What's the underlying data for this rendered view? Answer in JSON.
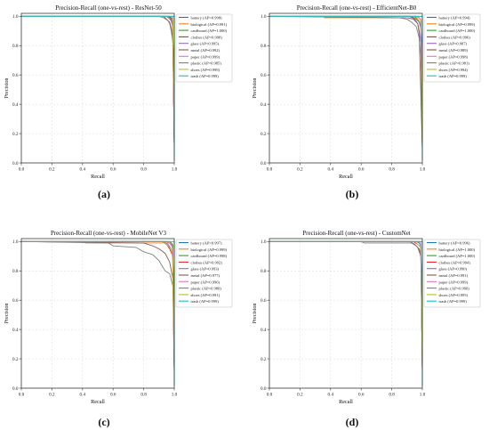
{
  "axis": {
    "xlabel": "Recall",
    "ylabel": "Precision",
    "xticks": [
      "0.0",
      "0.2",
      "0.4",
      "0.6",
      "0.8",
      "1.0"
    ],
    "yticks": [
      "0.0",
      "0.2",
      "0.4",
      "0.6",
      "0.8",
      "1.0"
    ],
    "xlim": [
      0,
      1
    ],
    "ylim": [
      0,
      1.02
    ]
  },
  "colors": [
    "#1f77b4",
    "#ff7f0e",
    "#2ca02c",
    "#d62728",
    "#9467bd",
    "#8c564b",
    "#e377c2",
    "#7f7f7f",
    "#bcbd22",
    "#17becf"
  ],
  "panels": [
    {
      "caption": "(a)"
    },
    {
      "caption": "(b)"
    },
    {
      "caption": "(c)"
    },
    {
      "caption": "(d)"
    }
  ],
  "chart_data": [
    {
      "type": "line",
      "title": "Precision-Recall (one-vs-rest) - ResNet-50",
      "xlabel": "Recall",
      "ylabel": "Precision",
      "xlim": [
        0,
        1
      ],
      "ylim": [
        0,
        1.02
      ],
      "grid": true,
      "legend_position": "right",
      "series": [
        {
          "name": "battery (AP=0.998)",
          "x": [
            0,
            0.9,
            0.97,
            0.98,
            0.99,
            1.0
          ],
          "y": [
            1.0,
            1.0,
            1.0,
            0.98,
            0.95,
            0.12
          ]
        },
        {
          "name": "biological (AP=0.991)",
          "x": [
            0,
            0.95,
            0.96,
            0.98,
            0.99,
            1.0
          ],
          "y": [
            1.0,
            1.0,
            0.99,
            0.97,
            0.93,
            0.1
          ]
        },
        {
          "name": "cardboard (AP=1.000)",
          "x": [
            0,
            0.99,
            1.0,
            1.0
          ],
          "y": [
            1.0,
            1.0,
            1.0,
            0.11
          ]
        },
        {
          "name": "clothes (AP=0.998)",
          "x": [
            0,
            0.96,
            0.98,
            0.99,
            1.0
          ],
          "y": [
            1.0,
            1.0,
            0.99,
            0.98,
            0.11
          ]
        },
        {
          "name": "glass (AP=0.995)",
          "x": [
            0,
            0.94,
            0.97,
            0.98,
            0.99,
            1.0
          ],
          "y": [
            1.0,
            1.0,
            0.99,
            0.97,
            0.93,
            0.1
          ]
        },
        {
          "name": "metal (AP=0.992)",
          "x": [
            0,
            0.93,
            0.95,
            0.97,
            0.98,
            0.99,
            1.0
          ],
          "y": [
            1.0,
            1.0,
            0.98,
            0.96,
            0.92,
            0.86,
            0.1
          ]
        },
        {
          "name": "paper (AP=0.999)",
          "x": [
            0,
            0.98,
            0.99,
            1.0
          ],
          "y": [
            1.0,
            1.0,
            0.99,
            0.1
          ]
        },
        {
          "name": "plastic (AP=0.985)",
          "x": [
            0,
            0.9,
            0.93,
            0.96,
            0.97,
            0.98,
            0.99,
            1.0
          ],
          "y": [
            1.0,
            1.0,
            0.99,
            0.97,
            0.95,
            0.9,
            0.83,
            0.68
          ]
        },
        {
          "name": "shoes (AP=0.999)",
          "x": [
            0,
            0.98,
            0.99,
            1.0
          ],
          "y": [
            1.0,
            1.0,
            0.99,
            0.11
          ]
        },
        {
          "name": "trash (AP=0.999)",
          "x": [
            0,
            0.99,
            1.0,
            1.0
          ],
          "y": [
            1.0,
            1.0,
            1.0,
            0.02
          ]
        }
      ]
    },
    {
      "type": "line",
      "title": "Precision-Recall (one-vs-rest) - EfficientNet-B0",
      "xlabel": "Recall",
      "ylabel": "Precision",
      "xlim": [
        0,
        1
      ],
      "ylim": [
        0,
        1.02
      ],
      "grid": true,
      "legend_position": "right",
      "series": [
        {
          "name": "battery (AP=0.994)",
          "x": [
            0,
            0.93,
            0.96,
            0.98,
            0.99,
            1.0
          ],
          "y": [
            1.0,
            1.0,
            0.98,
            0.96,
            0.92,
            0.75
          ]
        },
        {
          "name": "biological (AP=0.999)",
          "x": [
            0,
            0.35,
            0.36,
            0.98,
            0.99,
            1.0
          ],
          "y": [
            1.0,
            1.0,
            0.99,
            0.99,
            0.97,
            0.1
          ]
        },
        {
          "name": "cardboard (AP=1.000)",
          "x": [
            0,
            0.99,
            1.0,
            1.0
          ],
          "y": [
            1.0,
            1.0,
            1.0,
            0.11
          ]
        },
        {
          "name": "clothes (AP=0.996)",
          "x": [
            0,
            0.95,
            0.97,
            0.99,
            1.0
          ],
          "y": [
            1.0,
            1.0,
            0.98,
            0.95,
            0.11
          ]
        },
        {
          "name": "glass (AP=0.987)",
          "x": [
            0,
            0.9,
            0.94,
            0.97,
            0.98,
            0.99,
            1.0
          ],
          "y": [
            1.0,
            0.99,
            0.98,
            0.95,
            0.9,
            0.82,
            0.1
          ]
        },
        {
          "name": "metal (AP=0.989)",
          "x": [
            0,
            0.92,
            0.95,
            0.97,
            0.98,
            1.0
          ],
          "y": [
            1.0,
            1.0,
            0.98,
            0.95,
            0.88,
            0.08
          ]
        },
        {
          "name": "paper (AP=0.998)",
          "x": [
            0,
            0.97,
            0.99,
            1.0
          ],
          "y": [
            1.0,
            1.0,
            0.98,
            0.5
          ]
        },
        {
          "name": "plastic (AP=0.981)",
          "x": [
            0,
            0.85,
            0.9,
            0.93,
            0.96,
            0.98,
            1.0
          ],
          "y": [
            1.0,
            0.99,
            0.98,
            0.96,
            0.93,
            0.85,
            0.62
          ]
        },
        {
          "name": "shoes (AP=0.994)",
          "x": [
            0,
            0.94,
            0.97,
            0.99,
            1.0
          ],
          "y": [
            1.0,
            1.0,
            0.98,
            0.95,
            0.1
          ]
        },
        {
          "name": "trash (AP=0.999)",
          "x": [
            0,
            0.98,
            1.0,
            1.0
          ],
          "y": [
            1.0,
            1.0,
            1.0,
            0.02
          ]
        }
      ]
    },
    {
      "type": "line",
      "title": "Precision-Recall (one-vs-rest) - MobileNet V3",
      "xlabel": "Recall",
      "ylabel": "Precision",
      "xlim": [
        0,
        1
      ],
      "ylim": [
        0,
        1.02
      ],
      "grid": true,
      "legend_position": "right",
      "series": [
        {
          "name": "battery (AP=0.997)",
          "x": [
            0,
            0.95,
            0.97,
            0.99,
            1.0
          ],
          "y": [
            1.0,
            1.0,
            0.99,
            0.96,
            0.4
          ]
        },
        {
          "name": "biological (AP=0.999)",
          "x": [
            0,
            0.4,
            0.42,
            0.98,
            0.99,
            1.0
          ],
          "y": [
            1.0,
            1.0,
            0.99,
            0.99,
            0.97,
            0.1
          ]
        },
        {
          "name": "cardboard (AP=0.998)",
          "x": [
            0,
            0.97,
            0.99,
            1.0
          ],
          "y": [
            1.0,
            1.0,
            0.98,
            0.11
          ]
        },
        {
          "name": "clothes (AP=0.992)",
          "x": [
            0,
            0.92,
            0.95,
            0.97,
            0.99,
            1.0
          ],
          "y": [
            1.0,
            1.0,
            0.98,
            0.95,
            0.9,
            0.39
          ]
        },
        {
          "name": "glass (AP=0.993)",
          "x": [
            0,
            0.93,
            0.96,
            0.98,
            0.99,
            1.0
          ],
          "y": [
            1.0,
            1.0,
            0.98,
            0.95,
            0.9,
            0.1
          ]
        },
        {
          "name": "metal (AP=0.977)",
          "x": [
            0,
            0.8,
            0.86,
            0.9,
            0.94,
            0.97,
            0.99,
            1.0
          ],
          "y": [
            1.0,
            0.99,
            0.97,
            0.95,
            0.92,
            0.86,
            0.75,
            0.1
          ]
        },
        {
          "name": "paper (AP=0.996)",
          "x": [
            0,
            0.95,
            0.98,
            0.99,
            1.0
          ],
          "y": [
            1.0,
            1.0,
            0.98,
            0.95,
            0.1
          ]
        },
        {
          "name": "plastic (AP=0.980)",
          "x": [
            0,
            0.57,
            0.6,
            0.75,
            0.8,
            0.86,
            0.9,
            0.94,
            0.97,
            0.99,
            1.0
          ],
          "y": [
            1.0,
            0.99,
            0.97,
            0.96,
            0.93,
            0.91,
            0.87,
            0.8,
            0.78,
            0.7,
            0.6
          ]
        },
        {
          "name": "shoes (AP=0.991)",
          "x": [
            0,
            0.92,
            0.95,
            0.98,
            0.99,
            1.0
          ],
          "y": [
            1.0,
            1.0,
            0.98,
            0.95,
            0.88,
            0.1
          ]
        },
        {
          "name": "trash (AP=0.999)",
          "x": [
            0,
            0.99,
            1.0,
            1.0
          ],
          "y": [
            1.0,
            1.0,
            1.0,
            0.02
          ]
        }
      ]
    },
    {
      "type": "line",
      "title": "Precision-Recall (one-vs-rest) - CustomNet",
      "xlabel": "Recall",
      "ylabel": "Precision",
      "xlim": [
        0,
        1
      ],
      "ylim": [
        0,
        1.02
      ],
      "grid": true,
      "legend_position": "right",
      "series": [
        {
          "name": "battery (AP=0.996)",
          "x": [
            0,
            0.96,
            0.98,
            0.99,
            1.0
          ],
          "y": [
            1.0,
            1.0,
            0.99,
            0.97,
            0.52
          ]
        },
        {
          "name": "biological (AP=1.000)",
          "x": [
            0,
            0.99,
            1.0,
            1.0
          ],
          "y": [
            1.0,
            1.0,
            1.0,
            0.1
          ]
        },
        {
          "name": "cardboard (AP=1.000)",
          "x": [
            0,
            0.99,
            1.0,
            1.0
          ],
          "y": [
            1.0,
            1.0,
            1.0,
            0.11
          ]
        },
        {
          "name": "clothes (AP=0.994)",
          "x": [
            0,
            0.94,
            0.97,
            0.99,
            1.0
          ],
          "y": [
            1.0,
            1.0,
            0.98,
            0.96,
            0.11
          ]
        },
        {
          "name": "glass (AP=0.990)",
          "x": [
            0,
            0.92,
            0.95,
            0.97,
            0.99,
            1.0
          ],
          "y": [
            1.0,
            1.0,
            0.98,
            0.96,
            0.92,
            0.1
          ]
        },
        {
          "name": "metal (AP=0.991)",
          "x": [
            0,
            0.92,
            0.95,
            0.97,
            0.99,
            1.0
          ],
          "y": [
            1.0,
            1.0,
            0.98,
            0.96,
            0.9,
            0.1
          ]
        },
        {
          "name": "paper (AP=0.999)",
          "x": [
            0,
            0.98,
            0.99,
            1.0
          ],
          "y": [
            1.0,
            1.0,
            0.99,
            0.1
          ]
        },
        {
          "name": "plastic (AP=0.990)",
          "x": [
            0,
            0.6,
            0.62,
            0.93,
            0.96,
            0.98,
            0.99,
            1.0
          ],
          "y": [
            1.0,
            1.0,
            0.99,
            0.99,
            0.97,
            0.95,
            0.92,
            0.6
          ]
        },
        {
          "name": "shoes (AP=0.995)",
          "x": [
            0,
            0.95,
            0.97,
            0.99,
            1.0
          ],
          "y": [
            1.0,
            1.0,
            0.98,
            0.96,
            0.1
          ]
        },
        {
          "name": "trash (AP=0.999)",
          "x": [
            0,
            0.99,
            1.0,
            1.0
          ],
          "y": [
            1.0,
            1.0,
            1.0,
            0.02
          ]
        }
      ]
    }
  ]
}
